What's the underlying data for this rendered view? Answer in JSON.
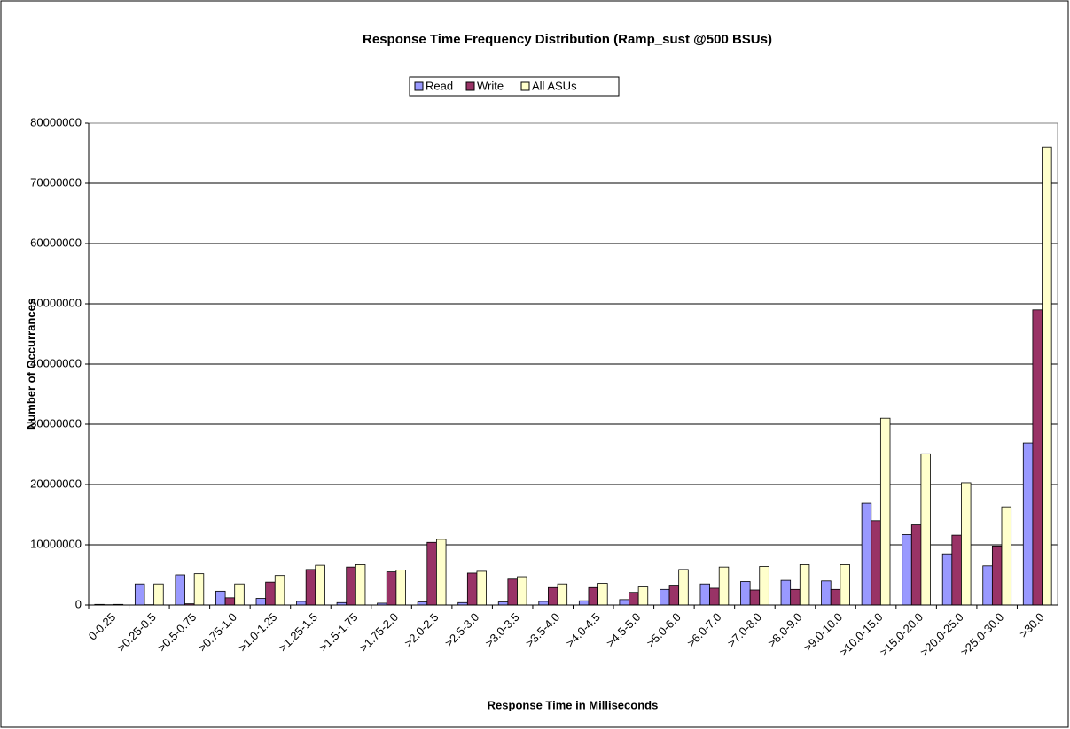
{
  "chart_data": {
    "type": "bar",
    "title": "Response Time Frequency Distribution (Ramp_sust @500 BSUs)",
    "x_label": "Response Time in Milliseconds",
    "y_label": "Number of Occurrances",
    "categories": [
      "0-0.25",
      ">0.25-0.5",
      ">0.5-0.75",
      ">0.75-1.0",
      ">1.0-1.25",
      ">1.25-1.5",
      ">1.5-1.75",
      ">1.75-2.0",
      ">2.0-2.5",
      ">2.5-3.0",
      ">3.0-3.5",
      ">3.5-4.0",
      ">4.0-4.5",
      ">4.5-5.0",
      ">5.0-6.0",
      ">6.0-7.0",
      ">7.0-8.0",
      ">8.0-9.0",
      ">9.0-10.0",
      ">10.0-15.0",
      ">15.0-20.0",
      ">20.0-25.0",
      ">25.0-30.0",
      ">30.0"
    ],
    "series": [
      {
        "name": "Read",
        "color": "#9999ff",
        "values": [
          100000,
          3500000,
          5000000,
          2300000,
          1100000,
          600000,
          400000,
          300000,
          500000,
          400000,
          500000,
          600000,
          700000,
          900000,
          2600000,
          3500000,
          3900000,
          4100000,
          4000000,
          16900000,
          11700000,
          8500000,
          6500000,
          26900000
        ]
      },
      {
        "name": "Write",
        "color": "#993366",
        "values": [
          50000,
          50000,
          200000,
          1200000,
          3800000,
          5900000,
          6300000,
          5500000,
          10400000,
          5300000,
          4300000,
          2900000,
          2900000,
          2100000,
          3300000,
          2800000,
          2500000,
          2600000,
          2600000,
          14000000,
          13300000,
          11600000,
          9800000,
          49000000
        ]
      },
      {
        "name": "All ASUs",
        "color": "#ffffcc",
        "values": [
          100000,
          3500000,
          5200000,
          3500000,
          4900000,
          6600000,
          6700000,
          5800000,
          10900000,
          5600000,
          4700000,
          3500000,
          3600000,
          3000000,
          5900000,
          6300000,
          6400000,
          6700000,
          6700000,
          31000000,
          25100000,
          20300000,
          16300000,
          76000000
        ]
      }
    ],
    "ylim": [
      0,
      80000000
    ],
    "yticks": [
      0,
      10000000,
      20000000,
      30000000,
      40000000,
      50000000,
      60000000,
      70000000,
      80000000
    ],
    "grid": true,
    "legend": "top"
  }
}
